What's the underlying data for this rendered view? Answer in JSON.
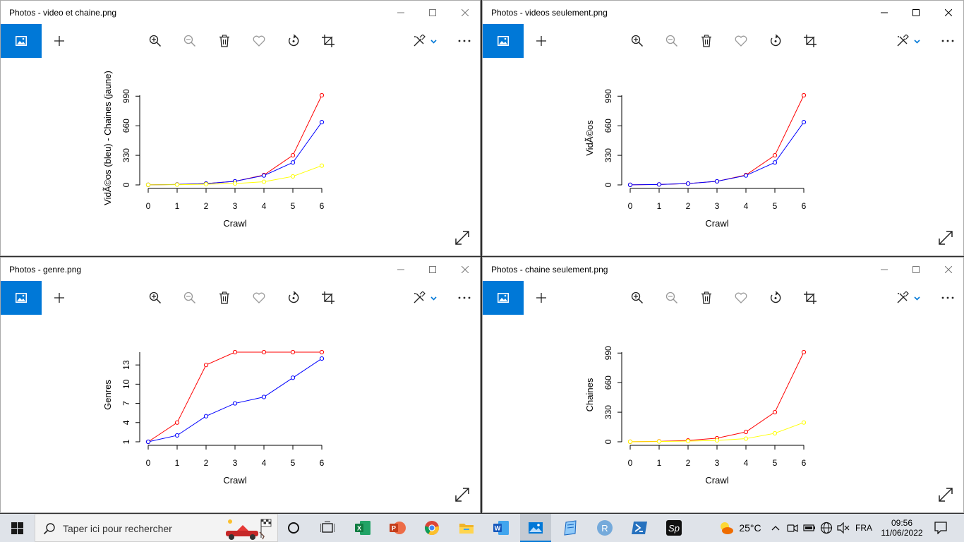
{
  "windows": [
    {
      "id": "w1",
      "title": "Photos - video et chaine.png",
      "active": false,
      "chart_data": {
        "type": "line",
        "x": [
          0,
          1,
          2,
          3,
          4,
          5,
          6
        ],
        "xlabel": "Crawl",
        "ylabel": "VidÃ©os (bleu) - Chaines (jaune)",
        "yticks": [
          "0",
          "330",
          "660",
          "990"
        ],
        "ylim": [
          0,
          1000
        ],
        "series": [
          {
            "color": "#ff0000",
            "values": [
              1,
              5,
              15,
              40,
              110,
              330,
              1000
            ]
          },
          {
            "color": "#0000ff",
            "values": [
              1,
              5,
              15,
              40,
              105,
              250,
              700
            ]
          },
          {
            "color": "#ffff00",
            "values": [
              1,
              3,
              8,
              15,
              35,
              95,
              215
            ]
          }
        ]
      }
    },
    {
      "id": "w2",
      "title": "Photos - videos seulement.png",
      "active": true,
      "chart_data": {
        "type": "line",
        "x": [
          0,
          1,
          2,
          3,
          4,
          5,
          6
        ],
        "xlabel": "Crawl",
        "ylabel": "VidÃ©os",
        "yticks": [
          "0",
          "330",
          "660",
          "990"
        ],
        "ylim": [
          0,
          1000
        ],
        "series": [
          {
            "color": "#ff0000",
            "values": [
              1,
              5,
              15,
              40,
              110,
              330,
              1000
            ]
          },
          {
            "color": "#0000ff",
            "values": [
              1,
              5,
              15,
              40,
              105,
              250,
              700
            ]
          }
        ]
      }
    },
    {
      "id": "w3",
      "title": "Photos - genre.png",
      "active": false,
      "chart_data": {
        "type": "line",
        "x": [
          0,
          1,
          2,
          3,
          4,
          5,
          6
        ],
        "xlabel": "Crawl",
        "ylabel": "Genres",
        "yticks": [
          "1",
          "4",
          "7",
          "10",
          "13"
        ],
        "ylim": [
          1,
          15
        ],
        "series": [
          {
            "color": "#ff0000",
            "values": [
              1,
              4,
              13,
              15,
              15,
              15,
              15
            ]
          },
          {
            "color": "#0000ff",
            "values": [
              1,
              2,
              5,
              7,
              8,
              11,
              14
            ]
          }
        ]
      }
    },
    {
      "id": "w4",
      "title": "Photos - chaine seulement.png",
      "active": false,
      "chart_data": {
        "type": "line",
        "x": [
          0,
          1,
          2,
          3,
          4,
          5,
          6
        ],
        "xlabel": "Crawl",
        "ylabel": "Chaines",
        "yticks": [
          "0",
          "330",
          "660",
          "990"
        ],
        "ylim": [
          0,
          1000
        ],
        "series": [
          {
            "color": "#ff0000",
            "values": [
              1,
              5,
              15,
              40,
              110,
              330,
              1000
            ]
          },
          {
            "color": "#ffff00",
            "values": [
              1,
              3,
              8,
              15,
              35,
              95,
              215
            ]
          }
        ]
      }
    }
  ],
  "taskbar": {
    "search_placeholder": "Taper ici pour rechercher",
    "temperature": "25°C",
    "language": "FRA",
    "time": "09:56",
    "date": "11/06/2022",
    "apps": [
      "task-view-icon",
      "excel-icon",
      "powerpoint-icon",
      "chrome-icon",
      "file-explorer-icon",
      "word-icon",
      "photos-icon",
      "notes-icon",
      "r-icon",
      "powershell-icon",
      "sp-icon"
    ]
  },
  "colors": {
    "accent": "#0078d7",
    "taskbar": "#dfe3e9"
  }
}
